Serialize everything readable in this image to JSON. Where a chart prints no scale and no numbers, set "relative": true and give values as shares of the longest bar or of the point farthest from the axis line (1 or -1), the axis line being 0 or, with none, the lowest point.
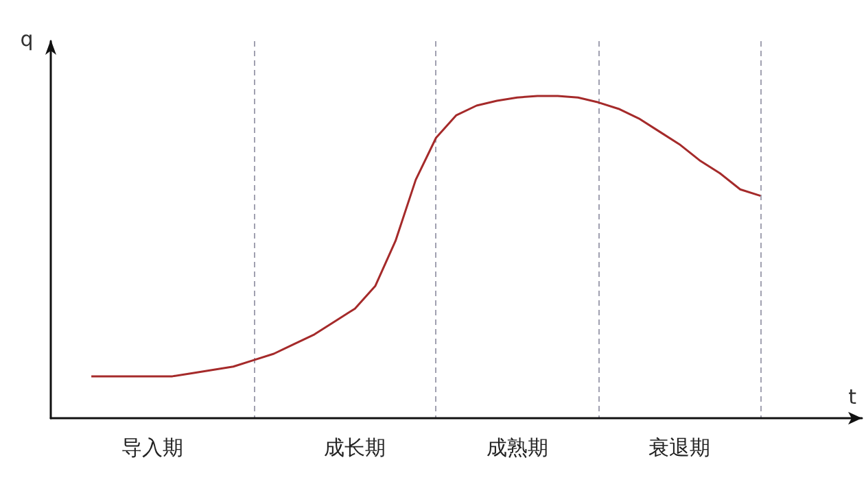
{
  "chart_data": {
    "type": "line",
    "relative": true,
    "xlabel": "t",
    "ylabel": "q",
    "grid": "x",
    "marker": "none",
    "line_style": "solid",
    "categories": [
      null,
      null,
      null,
      null,
      null,
      "导入期",
      null,
      null,
      null,
      null,
      null,
      null,
      null,
      null,
      null,
      "成长期",
      null,
      null,
      null,
      null,
      null,
      null,
      null,
      "成熟期",
      null,
      null,
      null,
      null,
      null,
      null,
      null,
      "衰退期",
      null,
      null,
      null,
      null,
      null,
      null,
      null,
      null,
      null
    ],
    "series": [
      {
        "color": "#a52a2a",
        "values": [
          null,
          null,
          0.13,
          0.13,
          0.13,
          0.13,
          0.13,
          0.14,
          0.15,
          0.16,
          0.18,
          0.2,
          0.23,
          0.26,
          0.3,
          0.34,
          0.41,
          0.55,
          0.74,
          0.87,
          0.94,
          0.97,
          0.985,
          0.995,
          1,
          1,
          0.995,
          0.98,
          0.96,
          0.93,
          0.89,
          0.85,
          0.8,
          0.76,
          0.71,
          0.69,
          null,
          null,
          null,
          null,
          null
        ]
      }
    ]
  }
}
